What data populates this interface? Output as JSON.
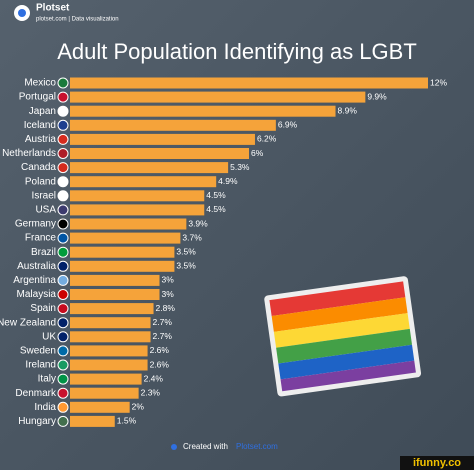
{
  "brand": {
    "name": "Plotset",
    "tagline": "plotset.com | Data visualization"
  },
  "chart_data": {
    "type": "hbar",
    "title": "Adult Population Identifying as LGBT",
    "categories": [
      "Mexico",
      "Portugal",
      "Japan",
      "Iceland",
      "Austria",
      "Netherlands",
      "Canada",
      "Poland",
      "Israel",
      "USA",
      "Germany",
      "France",
      "Brazil",
      "Australia",
      "Argentina",
      "Malaysia",
      "Spain",
      "New Zealand",
      "UK",
      "Sweden",
      "Ireland",
      "Italy",
      "Denmark",
      "India",
      "Hungary"
    ],
    "values": [
      12,
      9.9,
      8.9,
      6.9,
      6.2,
      6,
      5.3,
      4.9,
      4.5,
      4.5,
      3.9,
      3.7,
      3.5,
      3.5,
      3,
      3,
      2.8,
      2.7,
      2.7,
      2.6,
      2.6,
      2.4,
      2.3,
      2,
      1.5
    ],
    "value_labels": [
      "12%",
      "9.9%",
      "8.9%",
      "6.9%",
      "6.2%",
      "6%",
      "5.3%",
      "4.9%",
      "4.5%",
      "4.5%",
      "3.9%",
      "3.7%",
      "3.5%",
      "3.5%",
      "3%",
      "3%",
      "2.8%",
      "2.7%",
      "2.7%",
      "2.6%",
      "2.6%",
      "2.4%",
      "2.3%",
      "2%",
      "1.5%"
    ],
    "color": "#f5a33a"
  },
  "footer": {
    "credit": "Created with",
    "link": "Plotset.com"
  },
  "watermark": "ifunny.co"
}
